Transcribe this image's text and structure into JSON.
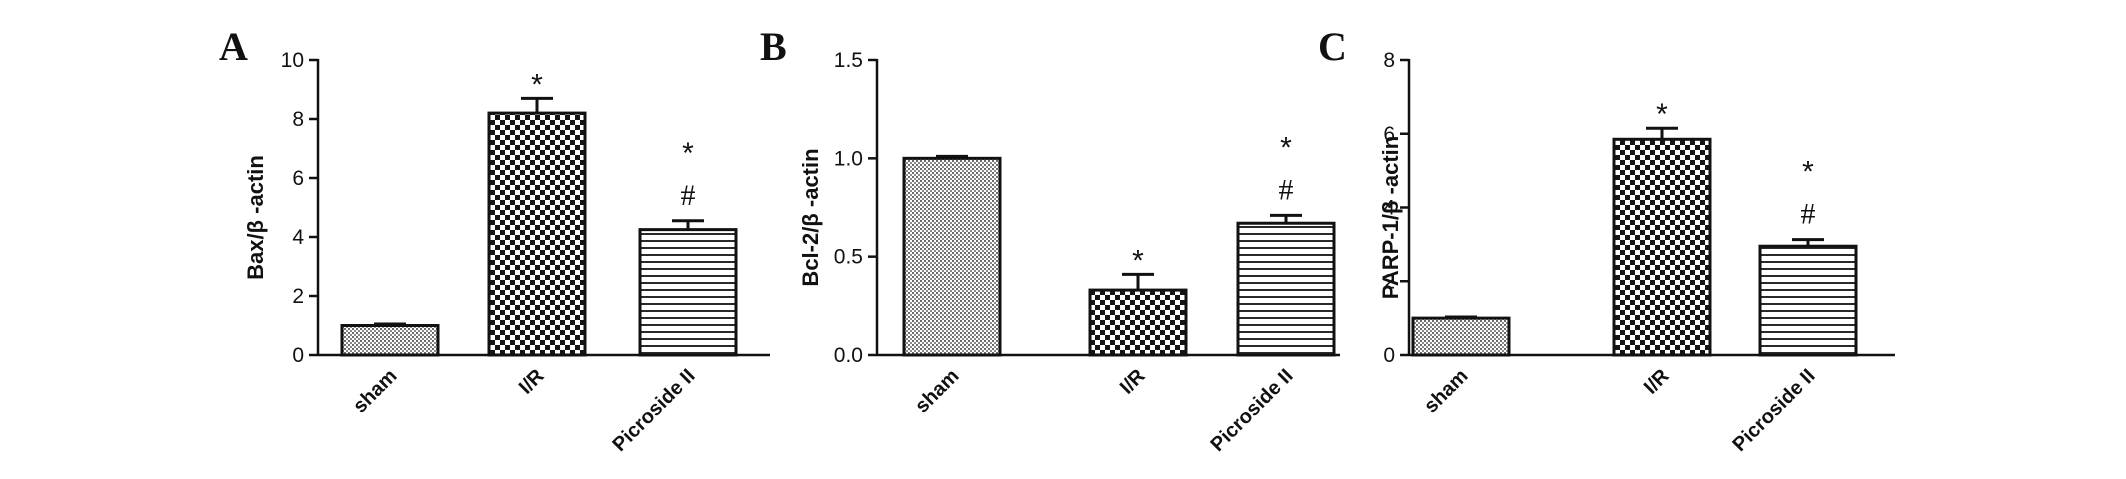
{
  "chart_data": [
    {
      "panel": "A",
      "type": "bar",
      "ylabel": "Bax/β -actin",
      "ylim": [
        0,
        10
      ],
      "yticks": [
        0,
        2,
        4,
        6,
        8,
        10
      ],
      "ytick_labels": [
        "0",
        "2",
        "4",
        "6",
        "8",
        "10"
      ],
      "categories": [
        "sham",
        "I/R",
        "Picroside II"
      ],
      "values": [
        1.0,
        8.2,
        4.25
      ],
      "errors": [
        0.05,
        0.5,
        0.3
      ],
      "annotations": [
        [],
        [
          "*"
        ],
        [
          "*",
          "#"
        ]
      ]
    },
    {
      "panel": "B",
      "type": "bar",
      "ylabel": "Bcl-2/β -actin",
      "ylim": [
        0,
        1.5
      ],
      "yticks": [
        0.0,
        0.5,
        1.0,
        1.5
      ],
      "ytick_labels": [
        "0.0",
        "0.5",
        "1.0",
        "1.5"
      ],
      "categories": [
        "sham",
        "I/R",
        "Picroside II"
      ],
      "values": [
        1.0,
        0.33,
        0.67
      ],
      "errors": [
        0.01,
        0.08,
        0.04
      ],
      "annotations": [
        [],
        [
          "*"
        ],
        [
          "*",
          "#"
        ]
      ]
    },
    {
      "panel": "C",
      "type": "bar",
      "ylabel": "PARP-1/β -actin",
      "ylim": [
        0,
        8
      ],
      "yticks": [
        0,
        2,
        4,
        6,
        8
      ],
      "ytick_labels": [
        "0",
        "2",
        "4",
        "6",
        "8"
      ],
      "categories": [
        "sham",
        "I/R",
        "Picroside II"
      ],
      "values": [
        1.0,
        5.85,
        2.95
      ],
      "errors": [
        0.03,
        0.3,
        0.18
      ],
      "annotations": [
        [],
        [
          "*"
        ],
        [
          "*",
          "#"
        ]
      ]
    }
  ]
}
